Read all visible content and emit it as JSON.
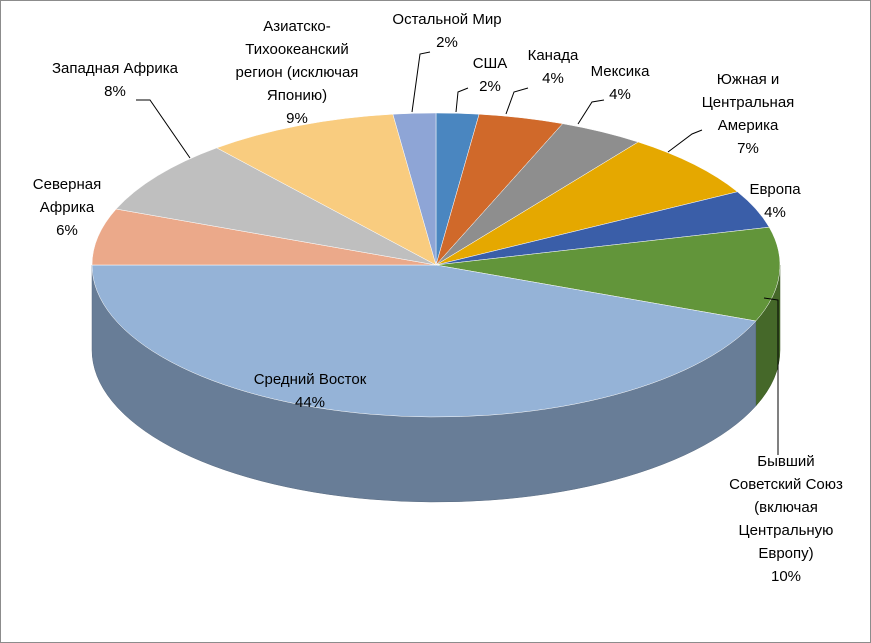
{
  "chart_data": {
    "type": "pie3d",
    "categories": [
      "США",
      "Канада",
      "Мексика",
      "Южная и Центральная Америка",
      "Европа",
      "Бывший Советский Союз (включая Центральную Европу)",
      "Средний Восток",
      "Северная Африка",
      "Западная Африка",
      "Азиатско-Тихоокеанский регион (исключая Японию)",
      "Остальной Мир"
    ],
    "values": [
      2,
      4,
      4,
      7,
      4,
      10,
      44,
      6,
      8,
      9,
      2
    ],
    "value_labels": [
      "2%",
      "4%",
      "4%",
      "7%",
      "4%",
      "10%",
      "44%",
      "6%",
      "8%",
      "9%",
      "2%"
    ],
    "colors": [
      "#4a86c0",
      "#d0692a",
      "#8e8e8e",
      "#e5a800",
      "#3a5ea8",
      "#62953a",
      "#95b3d7",
      "#eba98a",
      "#bfbfbf",
      "#f9cc7f",
      "#8ea5d6"
    ]
  }
}
